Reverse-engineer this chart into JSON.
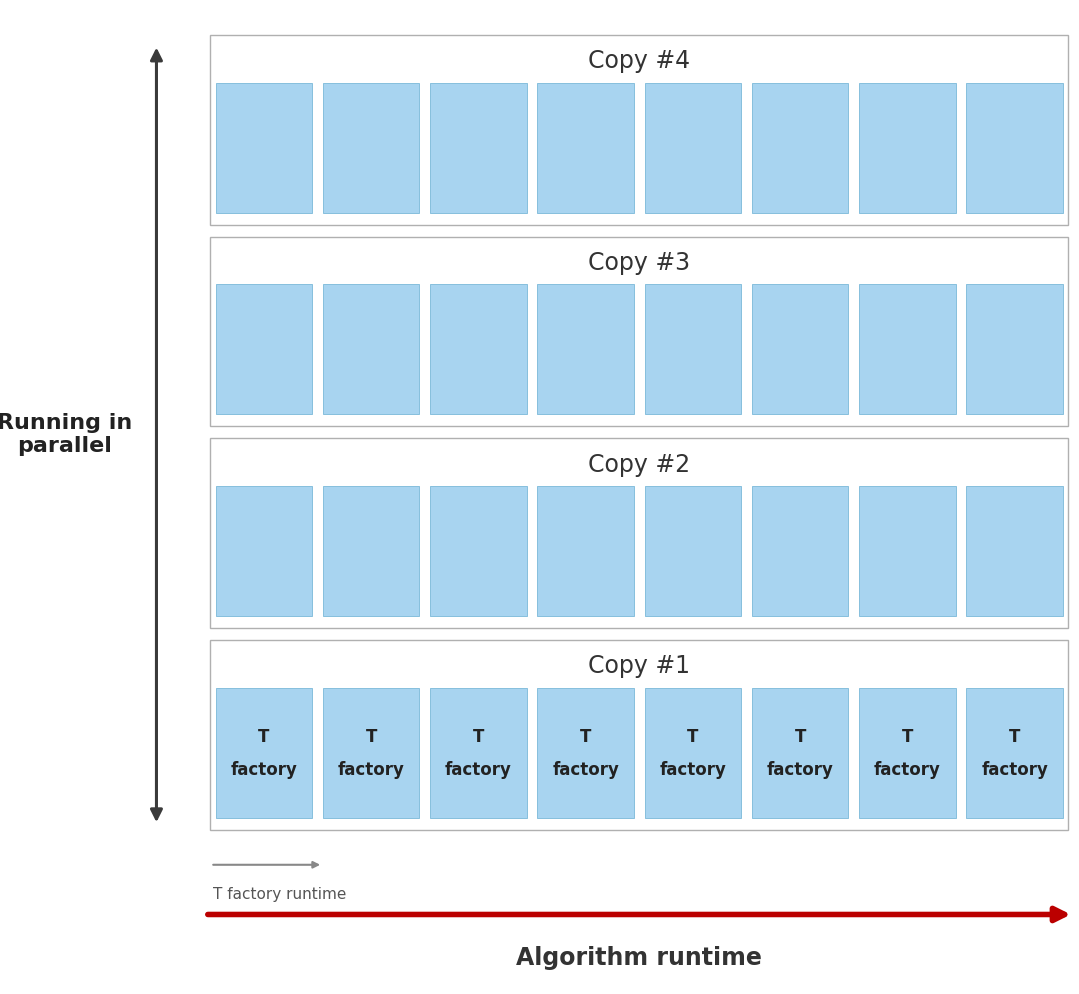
{
  "num_copies": 4,
  "num_factories": 8,
  "box_color": "#a8d4f0",
  "box_edge_color": "#7ab8d8",
  "outer_box_face_color": "#ffffff",
  "outer_box_edge_color": "#b0b0b0",
  "copy_labels": [
    "Copy #1",
    "Copy #2",
    "Copy #3",
    "Copy #4"
  ],
  "factory_label_top": "T",
  "factory_label_bottom": "factory",
  "ylabel_line1": "Running in",
  "ylabel_line2": "parallel",
  "xlabel": "Algorithm runtime",
  "runtime_label": "T factory runtime",
  "arrow_color_parallel": "#3a3a3a",
  "arrow_color_algorithm": "#bb0000",
  "arrow_color_runtime": "#888888",
  "background_color": "#ffffff",
  "copy_label_fontsize": 17,
  "factory_fontsize": 12,
  "xlabel_fontsize": 17,
  "ylabel_fontsize": 16,
  "runtime_label_fontsize": 11,
  "fig_width": 10.79,
  "fig_height": 9.94
}
